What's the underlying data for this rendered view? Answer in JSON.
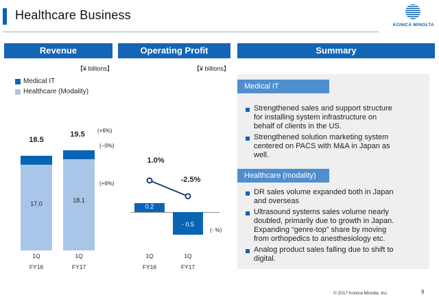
{
  "header": {
    "title": "Healthcare Business",
    "logo_text": "KONICA MINOLTA"
  },
  "sections": {
    "revenue": "Revenue",
    "operating_profit": "Operating Profit",
    "summary": "Summary"
  },
  "units": {
    "revenue": "【¥ billions】",
    "operating_profit": "【¥ billions】"
  },
  "legend": {
    "medical_it": "Medical IT",
    "modality": "Healthcare (Modality)"
  },
  "colors": {
    "accent": "#1565b4",
    "medical_it": "#0a64b4",
    "modality": "#a9c6e8",
    "tab": "#4f8fd0"
  },
  "chart_data": [
    {
      "type": "bar",
      "stacked": true,
      "categories": [
        "1Q FY16",
        "1Q FY17"
      ],
      "series": [
        {
          "name": "Healthcare (Modality)",
          "values": [
            17.0,
            18.1
          ]
        },
        {
          "name": "Medical IT",
          "values": [
            1.5,
            1.5
          ]
        }
      ],
      "totals": [
        18.5,
        19.5
      ],
      "category_lines": [
        [
          "1Q",
          "FY16"
        ],
        [
          "1Q",
          "FY17"
        ]
      ],
      "display": {
        "modality": [
          "17.0",
          "18.1"
        ],
        "medical_it": [
          "1.5",
          "1.5"
        ],
        "totals": [
          "18.5",
          "19.5"
        ]
      },
      "annotations": {
        "total_change": "(+6%)",
        "medical_it_change": "(−0%)",
        "modality_change": "(+6%)"
      }
    },
    {
      "type": "bar",
      "categories": [
        "1Q FY16",
        "1Q FY17"
      ],
      "values": [
        0.2,
        -0.5
      ],
      "display": [
        "0.2",
        "- 0.5"
      ],
      "category_lines": [
        [
          "1Q",
          "FY16"
        ],
        [
          "1Q",
          "FY17"
        ]
      ],
      "margin_values": [
        1.0,
        -2.5
      ],
      "margin_display": [
        "1.0%",
        "-2.5%"
      ],
      "annotations": {
        "change": "(- %)"
      }
    }
  ],
  "summary": {
    "medical_it": {
      "title": "Medical IT",
      "bullets": [
        [
          "Strengthened sales and support structure",
          "for installing system infrastructure on",
          "behalf of clients in the US."
        ],
        [
          "Strengthened solution marketing system",
          "centered on PACS with M&A in Japan as",
          "well."
        ]
      ]
    },
    "modality": {
      "title": "Healthcare (modality)",
      "bullets": [
        [
          "DR sales volume expanded both in Japan",
          "and overseas"
        ],
        [
          "Ultrasound systems sales volume nearly",
          "doubled, primarily due to growth in Japan.",
          "Expanding “genre-top” share  by moving",
          "from orthopedics to anesthesiology etc."
        ],
        [
          "Analog product sales falling due to shift to",
          "digital."
        ]
      ]
    }
  },
  "footer": {
    "copyright": "© 2017 Konica Minolta, Inc.",
    "page": "9"
  }
}
